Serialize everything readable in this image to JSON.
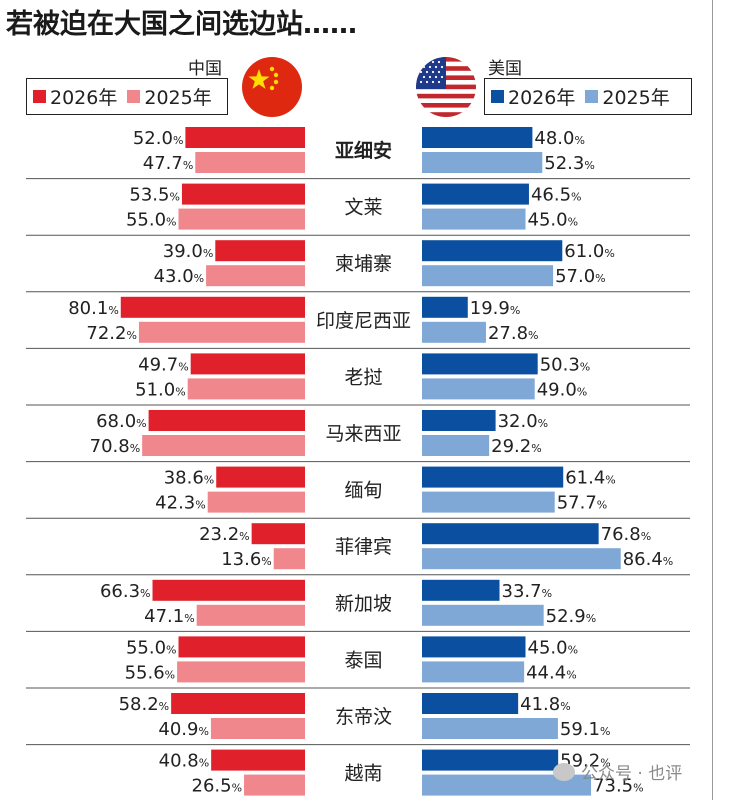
{
  "title": "若被迫在大国之间选边站……",
  "china": {
    "label": "中国",
    "legend": [
      "2026年",
      "2025年"
    ],
    "colors": [
      "#e0202a",
      "#f0878d"
    ]
  },
  "usa": {
    "label": "美国",
    "legend": [
      "2026年",
      "2025年"
    ],
    "colors": [
      "#0a4fa0",
      "#7fa8d6"
    ]
  },
  "chart_data": {
    "type": "bar",
    "layout": "diverging-horizontal",
    "unit": "%",
    "categories": [
      "亚细安",
      "文莱",
      "柬埔寨",
      "印度尼西亚",
      "老挝",
      "马来西亚",
      "缅甸",
      "菲律宾",
      "新加坡",
      "泰国",
      "东帝汶",
      "越南"
    ],
    "bold_category": "亚细安",
    "series": [
      {
        "name": "中国 2026年",
        "values": [
          52.0,
          53.5,
          39.0,
          80.1,
          49.7,
          68.0,
          38.6,
          23.2,
          66.3,
          55.0,
          58.2,
          40.8
        ]
      },
      {
        "name": "中国 2025年",
        "values": [
          47.7,
          55.0,
          43.0,
          72.2,
          51.0,
          70.8,
          42.3,
          13.6,
          47.1,
          55.6,
          40.9,
          26.5
        ]
      },
      {
        "name": "美国 2026年",
        "values": [
          48.0,
          46.5,
          61.0,
          19.9,
          50.3,
          32.0,
          61.4,
          76.8,
          33.7,
          45.0,
          41.8,
          59.2
        ]
      },
      {
        "name": "美国 2025年",
        "values": [
          52.3,
          45.0,
          57.0,
          27.8,
          49.0,
          29.2,
          57.7,
          86.4,
          52.9,
          44.4,
          59.1,
          73.5
        ]
      }
    ]
  },
  "watermark": "公众号 · 也评"
}
